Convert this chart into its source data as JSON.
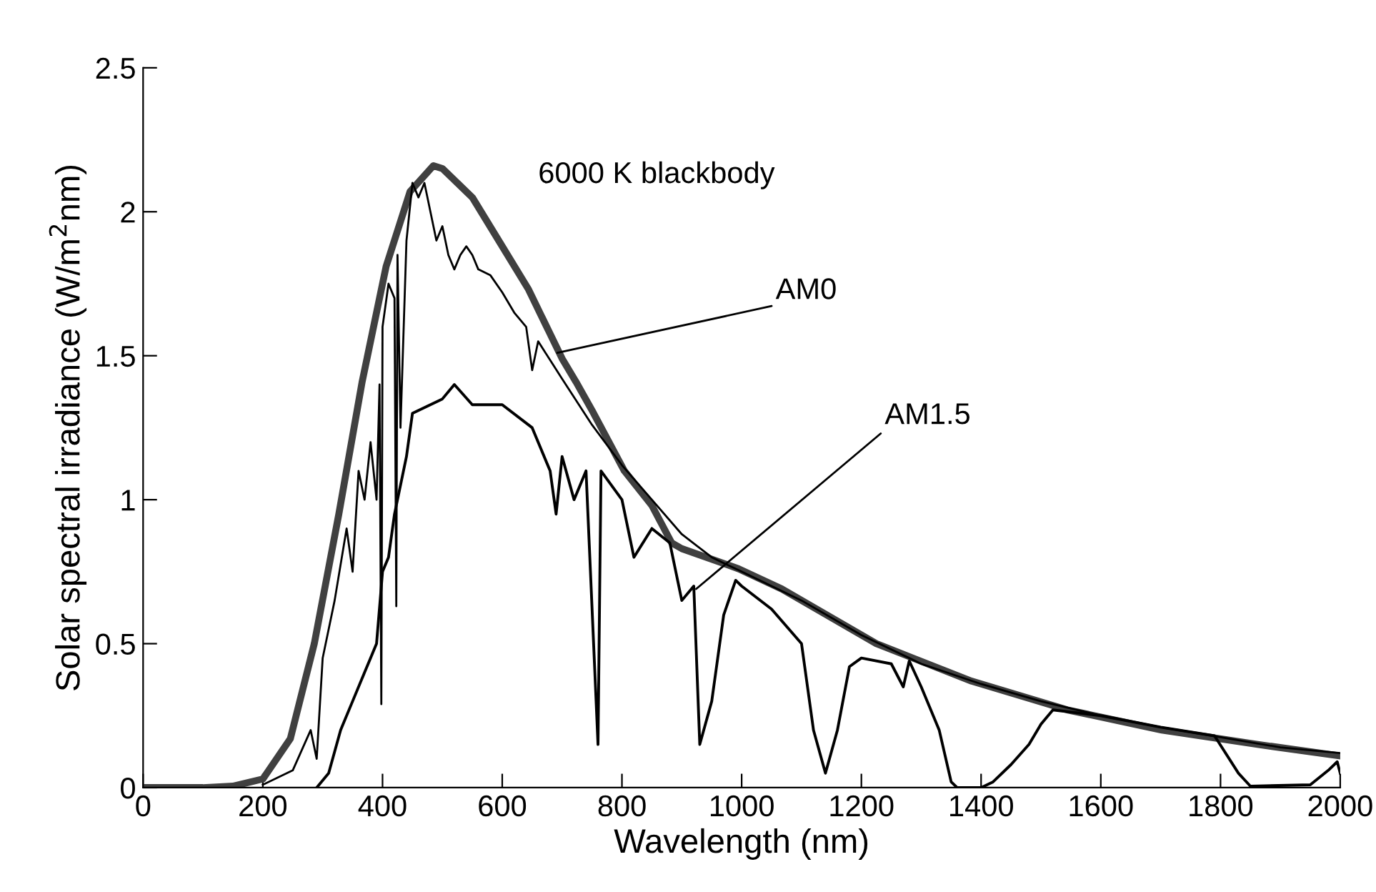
{
  "chart_data": {
    "type": "line",
    "xlabel": "Wavelength (nm)",
    "ylabel": "Solar spectral irradiance (W/m$^{2}$nm)",
    "xlim": [
      0,
      2000
    ],
    "ylim": [
      0,
      2.5
    ],
    "xticks": [
      0,
      200,
      400,
      600,
      800,
      1000,
      1200,
      1400,
      1600,
      1800,
      2000
    ],
    "yticks": [
      0,
      0.5,
      1,
      1.5,
      2,
      2.5
    ],
    "grid": false,
    "marker": "none",
    "line_style": "solid",
    "series": [
      {
        "color": "#404040",
        "x": [
          0,
          100,
          150,
          200,
          246,
          286,
          327,
          366,
          406,
          446,
          485,
          500,
          550,
          600,
          644,
          700,
          723,
          750,
          804,
          850,
          883,
          900,
          995,
          1067,
          1225,
          1384,
          1544,
          1702,
          1862,
          2000
        ],
        "values": [
          0,
          0,
          0.005,
          0.03,
          0.17,
          0.5,
          0.95,
          1.41,
          1.81,
          2.07,
          2.16,
          2.15,
          2.05,
          1.88,
          1.73,
          1.49,
          1.41,
          1.31,
          1.1,
          0.98,
          0.85,
          0.83,
          0.76,
          0.69,
          0.5,
          0.37,
          0.27,
          0.2,
          0.15,
          0.11
        ]
      },
      {
        "color": "#000000",
        "x": [
          200,
          250,
          280,
          290,
          300,
          320,
          340,
          350,
          360,
          370,
          380,
          390,
          395,
          398,
          400,
          410,
          420,
          423,
          425,
          430,
          440,
          450,
          460,
          470,
          480,
          490,
          500,
          510,
          520,
          530,
          540,
          550,
          560,
          580,
          600,
          620,
          640,
          650,
          660,
          700,
          750,
          800,
          850,
          900,
          950,
          1000,
          1100,
          1200,
          1300,
          1400,
          1500,
          1600,
          1700,
          1800,
          1900,
          2000
        ],
        "values": [
          0.01,
          0.06,
          0.2,
          0.1,
          0.45,
          0.65,
          0.9,
          0.75,
          1.1,
          1.0,
          1.2,
          1.0,
          1.4,
          0.29,
          1.6,
          1.75,
          1.7,
          0.63,
          1.85,
          1.25,
          1.9,
          2.1,
          2.05,
          2.1,
          2.0,
          1.9,
          1.95,
          1.85,
          1.8,
          1.85,
          1.88,
          1.85,
          1.8,
          1.78,
          1.72,
          1.65,
          1.6,
          1.45,
          1.55,
          1.42,
          1.26,
          1.12,
          1.0,
          0.88,
          0.8,
          0.75,
          0.65,
          0.53,
          0.43,
          0.36,
          0.3,
          0.25,
          0.21,
          0.175,
          0.14,
          0.12
        ]
      },
      {
        "color": "#000000",
        "x": [
          290,
          310,
          330,
          350,
          370,
          380,
          390,
          400,
          410,
          420,
          440,
          450,
          470,
          500,
          520,
          550,
          600,
          650,
          680,
          690,
          700,
          720,
          740,
          760,
          765,
          800,
          820,
          850,
          880,
          900,
          920,
          930,
          950,
          960,
          970,
          990,
          1000,
          1050,
          1100,
          1120,
          1140,
          1160,
          1180,
          1200,
          1250,
          1270,
          1280,
          1300,
          1330,
          1350,
          1360,
          1400,
          1420,
          1450,
          1480,
          1500,
          1520,
          1600,
          1700,
          1790,
          1830,
          1850,
          1950,
          1980,
          1995,
          2000
        ],
        "values": [
          0,
          0.05,
          0.2,
          0.3,
          0.4,
          0.45,
          0.5,
          0.75,
          0.8,
          0.95,
          1.15,
          1.3,
          1.32,
          1.35,
          1.4,
          1.33,
          1.33,
          1.25,
          1.1,
          0.95,
          1.15,
          1.0,
          1.1,
          0.15,
          1.1,
          1.0,
          0.8,
          0.9,
          0.85,
          0.65,
          0.7,
          0.15,
          0.3,
          0.45,
          0.6,
          0.72,
          0.7,
          0.62,
          0.5,
          0.2,
          0.05,
          0.2,
          0.42,
          0.45,
          0.43,
          0.35,
          0.44,
          0.35,
          0.2,
          0.02,
          0,
          0,
          0.02,
          0.08,
          0.15,
          0.22,
          0.27,
          0.25,
          0.21,
          0.18,
          0.05,
          0.005,
          0.01,
          0.06,
          0.09,
          0.05
        ]
      }
    ],
    "annotations": [
      "6000 K blackbody",
      {
        "text": "AM0",
        "x": 692,
        "y": 1.51
      },
      {
        "text": "AM1.5",
        "x": 924,
        "y": 0.69
      }
    ]
  }
}
